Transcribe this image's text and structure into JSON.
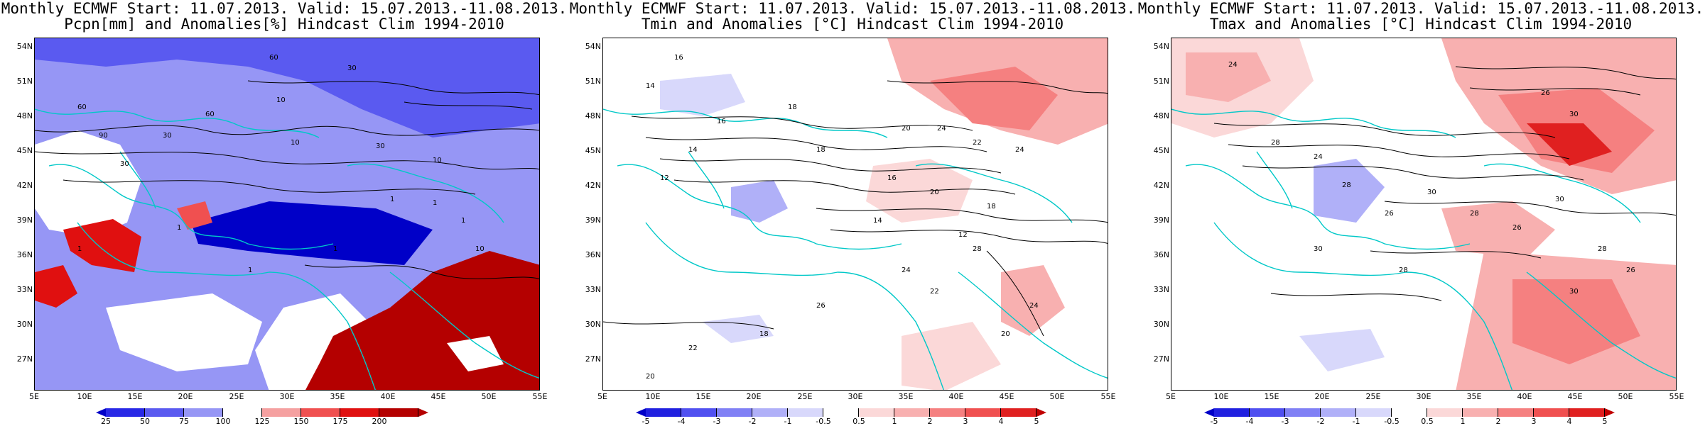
{
  "panels": [
    {
      "title_line1": "Monthly ECMWF Start: 11.07.2013. Valid: 15.07.2013.-11.08.2013.",
      "title_line2": "Pcpn[mm] and Anomalies[%] Hindcast Clim 1994-2010",
      "colorbar": {
        "labels": [
          "25",
          "50",
          "75",
          "100",
          "125",
          "150",
          "175",
          "200"
        ],
        "colors": [
          "#0000c8",
          "#2828e6",
          "#5a5af0",
          "#9696f5",
          "#ffffff",
          "#f5a0a0",
          "#f05050",
          "#e01010",
          "#b40000"
        ]
      },
      "contour_labels": [
        "60",
        "30",
        "60",
        "90",
        "60",
        "30",
        "30",
        "10",
        "10",
        "30",
        "10",
        "1",
        "1",
        "1",
        "10",
        "1",
        "1",
        "1",
        "1"
      ]
    },
    {
      "title_line1": "Monthly ECMWF Start: 11.07.2013. Valid: 15.07.2013.-11.08.2013.",
      "title_line2": "Tmin and Anomalies [°C] Hindcast Clim 1994-2010",
      "colorbar": {
        "labels": [
          "-5",
          "-4",
          "-3",
          "-2",
          "-1",
          "-0.5",
          "0.5",
          "1",
          "2",
          "3",
          "4",
          "5"
        ],
        "colors": [
          "#0000c8",
          "#2020e0",
          "#5050f0",
          "#8080f5",
          "#b0b0f8",
          "#d8d8fb",
          "#ffffff",
          "#fbd8d8",
          "#f8b0b0",
          "#f58080",
          "#f05050",
          "#e02020",
          "#c00000"
        ]
      },
      "contour_labels": [
        "16",
        "14",
        "18",
        "16",
        "14",
        "12",
        "18",
        "20",
        "24",
        "22",
        "24",
        "16",
        "20",
        "18",
        "12",
        "14",
        "24",
        "22",
        "28",
        "26",
        "20",
        "24",
        "18",
        "22",
        "20"
      ]
    },
    {
      "title_line1": "Monthly ECMWF Start: 11.07.2013. Valid: 15.07.2013.-11.08.2013.",
      "title_line2": "Tmax and Anomalies [°C] Hindcast Clim 1994-2010",
      "colorbar": {
        "labels": [
          "-5",
          "-4",
          "-3",
          "-2",
          "-1",
          "-0.5",
          "0.5",
          "1",
          "2",
          "3",
          "4",
          "5"
        ],
        "colors": [
          "#0000c8",
          "#2020e0",
          "#5050f0",
          "#8080f5",
          "#b0b0f8",
          "#d8d8fb",
          "#ffffff",
          "#fbd8d8",
          "#f8b0b0",
          "#f58080",
          "#f05050",
          "#e02020",
          "#c00000"
        ]
      },
      "contour_labels": [
        "24",
        "26",
        "30",
        "28",
        "24",
        "28",
        "26",
        "30",
        "28",
        "26",
        "30",
        "28",
        "26",
        "28",
        "30",
        "30"
      ]
    }
  ],
  "lat_labels": [
    "54N",
    "51N",
    "48N",
    "45N",
    "42N",
    "39N",
    "36N",
    "33N",
    "30N",
    "27N"
  ],
  "lon_labels": [
    "5E",
    "10E",
    "15E",
    "20E",
    "25E",
    "30E",
    "35E",
    "40E",
    "45E",
    "50E",
    "55E"
  ]
}
